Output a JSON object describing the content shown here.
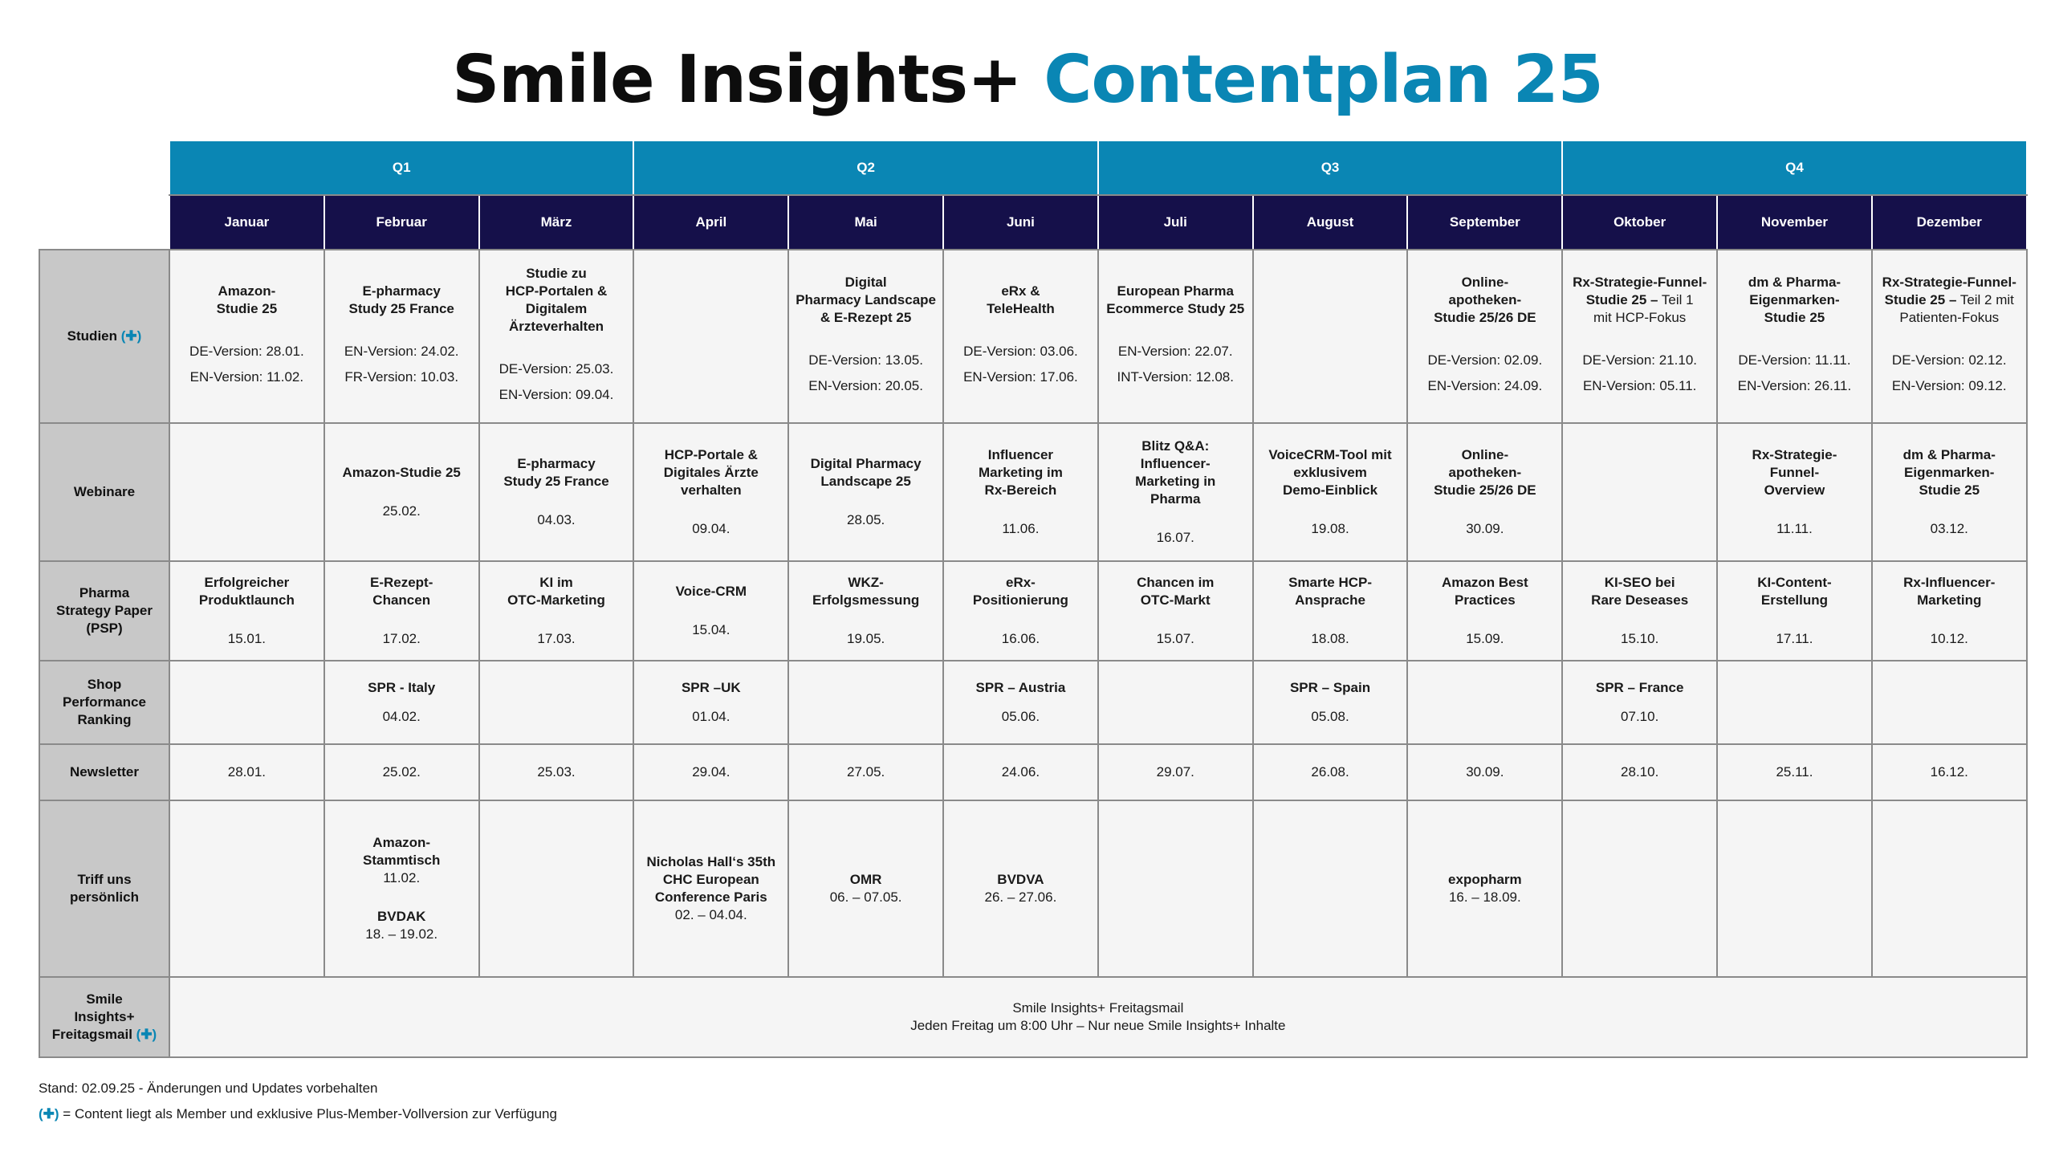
{
  "title": {
    "part1": "Smile Insights+",
    "part2": "Contentplan 25"
  },
  "quarters": [
    "Q1",
    "Q2",
    "Q3",
    "Q4"
  ],
  "months": [
    "Januar",
    "Februar",
    "März",
    "April",
    "Mai",
    "Juni",
    "Juli",
    "August",
    "September",
    "Oktober",
    "November",
    "Dezember"
  ],
  "rows": {
    "studien": {
      "label": "Studien",
      "plus": "(✚)",
      "cells": [
        {
          "name": "Amazon-\nStudie 25",
          "d1": "DE-Version: 28.01.",
          "d2": "EN-Version: 11.02."
        },
        {
          "name": "E-pharmacy\nStudy 25 France",
          "d1": "EN-Version: 24.02.",
          "d2": "FR-Version: 10.03."
        },
        {
          "name": "Studie zu\nHCP-Portalen &\nDigitalem\nÄrzteverhalten",
          "d1": "DE-Version: 25.03.",
          "d2": "EN-Version: 09.04."
        },
        {
          "name": "",
          "d1": "",
          "d2": ""
        },
        {
          "name": "Digital\nPharmacy Landscape\n& E-Rezept 25",
          "d1": "DE-Version: 13.05.",
          "d2": "EN-Version: 20.05."
        },
        {
          "name": "eRx &\nTeleHealth",
          "d1": "DE-Version: 03.06.",
          "d2": "EN-Version: 17.06."
        },
        {
          "name": "European Pharma\nEcommerce Study 25",
          "d1": "EN-Version: 22.07.",
          "d2": "INT-Version: 12.08."
        },
        {
          "name": "",
          "d1": "",
          "d2": ""
        },
        {
          "name": "Online-\napotheken-\nStudie 25/26 DE",
          "d1": "DE-Version: 02.09.",
          "d2": "EN-Version: 24.09."
        },
        {
          "name": "Rx-Strategie-Funnel-\nStudie 25 –",
          "light": " Teil 1\nmit HCP-Fokus",
          "d1": "DE-Version: 21.10.",
          "d2": "EN-Version: 05.11."
        },
        {
          "name": "dm & Pharma-\nEigenmarken-\nStudie 25",
          "d1": "DE-Version: 11.11.",
          "d2": "EN-Version: 26.11."
        },
        {
          "name": "Rx-Strategie-Funnel-\nStudie 25 –",
          "light": " Teil 2 mit\nPatienten-Fokus",
          "d1": "DE-Version: 02.12.",
          "d2": "EN-Version: 09.12."
        }
      ]
    },
    "webinare": {
      "label": "Webinare",
      "cells": [
        {
          "name": "",
          "date": ""
        },
        {
          "name": "Amazon-Studie 25",
          "date": "25.02."
        },
        {
          "name": "E-pharmacy\nStudy 25 France",
          "date": "04.03."
        },
        {
          "name": "HCP-Portale &\nDigitales Ärzte\nverhalten",
          "date": "09.04."
        },
        {
          "name": "Digital Pharmacy\nLandscape 25",
          "date": "28.05."
        },
        {
          "name": "Influencer\nMarketing im\nRx-Bereich",
          "date": "11.06."
        },
        {
          "name": "Blitz Q&A:\nInfluencer-\nMarketing in\nPharma",
          "date": "16.07."
        },
        {
          "name": "VoiceCRM-Tool mit\nexklusivem\nDemo-Einblick",
          "date": "19.08."
        },
        {
          "name": "Online-\napotheken-\nStudie 25/26 DE",
          "date": "30.09."
        },
        {
          "name": "",
          "date": ""
        },
        {
          "name": "Rx-Strategie-\nFunnel-\nOverview",
          "date": "11.11."
        },
        {
          "name": "dm & Pharma-\nEigenmarken-\nStudie 25",
          "date": "03.12."
        }
      ]
    },
    "psp": {
      "label": "Pharma\nStrategy Paper\n(PSP)",
      "cells": [
        {
          "name": "Erfolgreicher\nProduktlaunch",
          "date": "15.01."
        },
        {
          "name": "E-Rezept-\nChancen",
          "date": "17.02."
        },
        {
          "name": "KI im\nOTC-Marketing",
          "date": "17.03."
        },
        {
          "name": "Voice-CRM",
          "date": "15.04."
        },
        {
          "name": "WKZ-\nErfolgsmessung",
          "date": "19.05."
        },
        {
          "name": "eRx-\nPositionierung",
          "date": "16.06."
        },
        {
          "name": "Chancen im\nOTC-Markt",
          "date": "15.07."
        },
        {
          "name": "Smarte HCP-\nAnsprache",
          "date": "18.08."
        },
        {
          "name": "Amazon Best\nPractices",
          "date": "15.09."
        },
        {
          "name": "KI-SEO bei\nRare Deseases",
          "date": "15.10."
        },
        {
          "name": "KI-Content-\nErstellung",
          "date": "17.11."
        },
        {
          "name": "Rx-Influencer-\nMarketing",
          "date": "10.12."
        }
      ]
    },
    "spr": {
      "label": "Shop\nPerformance\nRanking",
      "cells": [
        {
          "name": "",
          "date": ""
        },
        {
          "name": "SPR - Italy",
          "date": "04.02."
        },
        {
          "name": "",
          "date": ""
        },
        {
          "name": "SPR –UK",
          "date": "01.04."
        },
        {
          "name": "",
          "date": ""
        },
        {
          "name": "SPR – Austria",
          "date": "05.06."
        },
        {
          "name": "",
          "date": ""
        },
        {
          "name": "SPR – Spain",
          "date": "05.08."
        },
        {
          "name": "",
          "date": ""
        },
        {
          "name": "SPR – France",
          "date": "07.10."
        },
        {
          "name": "",
          "date": ""
        },
        {
          "name": "",
          "date": ""
        }
      ]
    },
    "newsletter": {
      "label": "Newsletter",
      "cells": [
        "28.01.",
        "25.02.",
        "25.03.",
        "29.04.",
        "27.05.",
        "24.06.",
        "29.07.",
        "26.08.",
        "30.09.",
        "28.10.",
        "25.11.",
        "16.12."
      ]
    },
    "triff": {
      "label": "Triff uns\npersönlich",
      "cells": [
        {
          "items": []
        },
        {
          "items": [
            {
              "name": "Amazon-\nStammtisch",
              "date": "11.02."
            },
            {
              "name": "BVDAK",
              "date": "18. – 19.02."
            }
          ]
        },
        {
          "items": []
        },
        {
          "items": [
            {
              "name": "Nicholas Hall‘s 35th\nCHC European\nConference Paris",
              "date": "02. – 04.04."
            }
          ]
        },
        {
          "items": [
            {
              "name": "OMR",
              "date": "06. – 07.05."
            }
          ]
        },
        {
          "items": [
            {
              "name": "BVDVA",
              "date": "26. – 27.06."
            }
          ]
        },
        {
          "items": []
        },
        {
          "items": []
        },
        {
          "items": [
            {
              "name": "expopharm",
              "date": "16. – 18.09."
            }
          ]
        },
        {
          "items": []
        },
        {
          "items": []
        },
        {
          "items": []
        }
      ]
    },
    "freitagsmail": {
      "label": "Smile\nInsights+\nFreitagsmail",
      "plus": "(✚)",
      "line1": "Smile Insights+ Freitagsmail",
      "line2": "Jeden Freitag um 8:00 Uhr – Nur neue Smile Insights+ Inhalte"
    }
  },
  "footer": {
    "stand": "Stand: 02.09.25 - Änderungen und Updates vorbehalten",
    "plus": "(✚)",
    "note": " = Content liegt als Member und exklusive Plus-Member-Vollversion zur Verfügung"
  }
}
